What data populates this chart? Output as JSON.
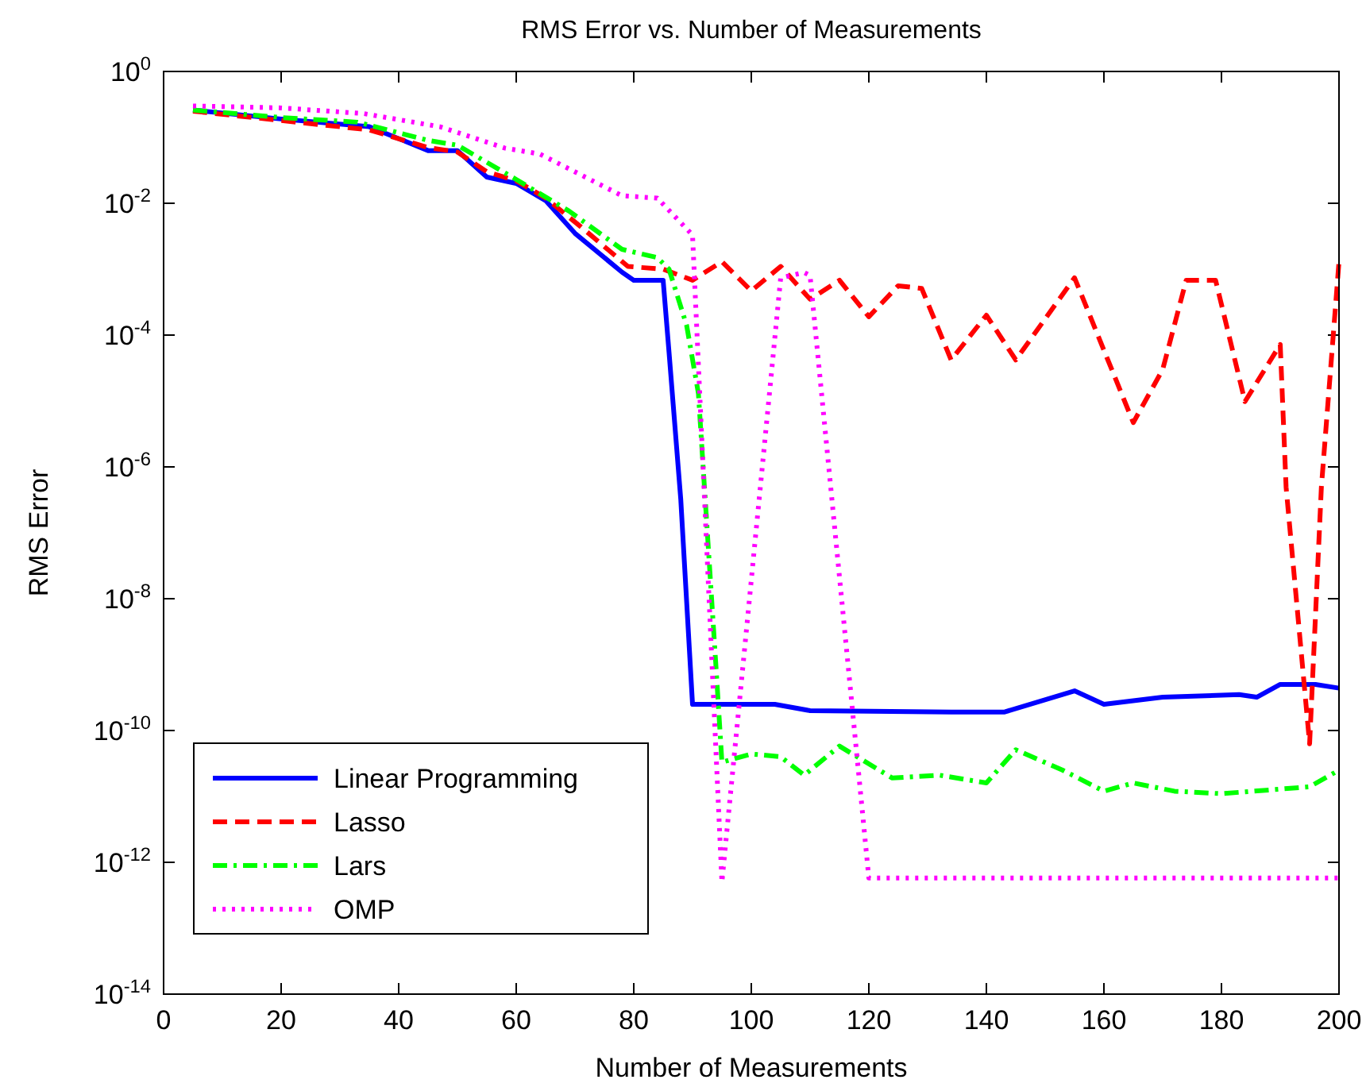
{
  "chart_data": {
    "type": "line",
    "title": "RMS Error vs. Number of Measurements",
    "xlabel": "Number of Measurements",
    "ylabel": "RMS Error",
    "log": "y",
    "grid": false,
    "legend": "bottom left",
    "marker": "none",
    "xlim": [
      0,
      200
    ],
    "xticks": [
      0,
      20,
      40,
      60,
      80,
      100,
      120,
      140,
      160,
      180,
      200
    ],
    "ylim": [
      1e-14,
      1
    ],
    "yticks": [
      {
        "value": 1e-14,
        "label": "10$^{-14}$"
      },
      {
        "value": 1e-12,
        "label": "10$^{-12}$"
      },
      {
        "value": 1e-10,
        "label": "10$^{-10}$"
      },
      {
        "value": 1e-08,
        "label": "10$^{-8}$"
      },
      {
        "value": 1e-06,
        "label": "10$^{-6}$"
      },
      {
        "value": 0.0001,
        "label": "10$^{-4}$"
      },
      {
        "value": 0.01,
        "label": "10$^{-2}$"
      },
      {
        "value": 1,
        "label": "10$^{0}$"
      }
    ],
    "series": [
      {
        "name": "Linear Programming",
        "color": "#0000ff",
        "line_style": "solid",
        "x": [
          5,
          20,
          35,
          45,
          50,
          55,
          60,
          65,
          70,
          78,
          80,
          85,
          86,
          88,
          90,
          104,
          110,
          134,
          143,
          155,
          160,
          170,
          183,
          186,
          190,
          196,
          200
        ],
        "values": [
          0.26,
          0.19,
          0.145,
          0.063,
          0.063,
          0.025,
          0.02,
          0.011,
          0.0035,
          0.0009,
          0.00068,
          0.00068,
          5.5e-05,
          3.2e-07,
          2.5e-10,
          2.5e-10,
          2e-10,
          1.9e-10,
          1.9e-10,
          4e-10,
          2.5e-10,
          3.2e-10,
          3.5e-10,
          3.2e-10,
          5e-10,
          5e-10,
          4.4e-10
        ]
      },
      {
        "name": "Lasso",
        "color": "#ff0000",
        "line_style": "dashed",
        "x": [
          5,
          20,
          35,
          45,
          50,
          55,
          60,
          65,
          71,
          79,
          85,
          90,
          95,
          100,
          105,
          110,
          115,
          120,
          125,
          129,
          134,
          140,
          145,
          155,
          165,
          170,
          174,
          179,
          184,
          190,
          191,
          195,
          197,
          200
        ],
        "values": [
          0.25,
          0.18,
          0.13,
          0.07,
          0.06,
          0.03,
          0.022,
          0.012,
          0.0044,
          0.0011,
          0.001,
          0.00068,
          0.0013,
          0.00047,
          0.0011,
          0.00035,
          0.00068,
          0.00019,
          0.00056,
          0.00051,
          4.2e-05,
          0.0002,
          4.2e-05,
          0.00074,
          4.7e-06,
          3e-05,
          0.00068,
          0.00068,
          9.8e-06,
          7.2e-05,
          4.9e-07,
          6.3e-11,
          4.9e-07,
          0.0013
        ]
      },
      {
        "name": "Lars",
        "color": "#00ff00",
        "line_style": "dashdot",
        "x": [
          5,
          20,
          33,
          45,
          50,
          60,
          69,
          78,
          84,
          86,
          89,
          91,
          94,
          95,
          100,
          105,
          109,
          115,
          124,
          132,
          140,
          145,
          153,
          160,
          165,
          172,
          180,
          195,
          200
        ],
        "values": [
          0.26,
          0.2,
          0.17,
          0.09,
          0.076,
          0.023,
          0.0076,
          0.002,
          0.0015,
          0.001,
          0.00014,
          1.3e-05,
          9e-10,
          3.3e-11,
          4.4e-11,
          4e-11,
          2.1e-11,
          5.8e-11,
          1.9e-11,
          2.1e-11,
          1.6e-11,
          5.1e-11,
          2.5e-11,
          1.2e-11,
          1.6e-11,
          1.2e-11,
          1.1e-11,
          1.4e-11,
          2.5e-11
        ]
      },
      {
        "name": "OMP",
        "color": "#ff00ff",
        "line_style": "dotted",
        "x": [
          5,
          20,
          34,
          47,
          58,
          64,
          71,
          78,
          84,
          90,
          95,
          105,
          109,
          110,
          120,
          200
        ],
        "values": [
          0.3,
          0.28,
          0.23,
          0.145,
          0.069,
          0.056,
          0.027,
          0.013,
          0.012,
          0.0033,
          5e-13,
          0.00074,
          0.00089,
          0.0008,
          5.8e-13,
          5.8e-13
        ]
      }
    ]
  }
}
